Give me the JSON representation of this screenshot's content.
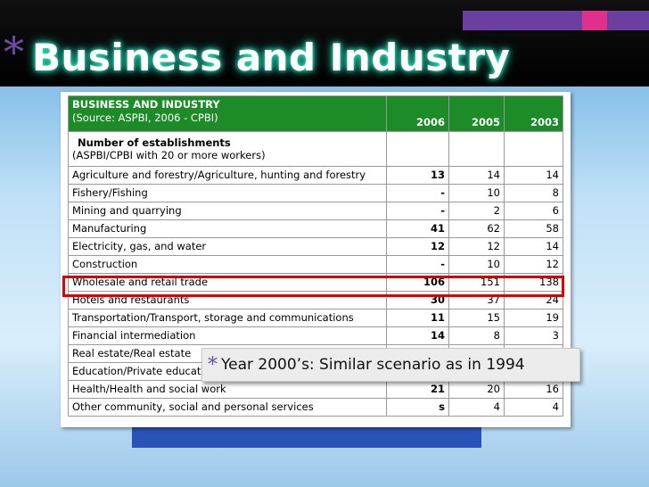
{
  "slide": {
    "title": "Business and Industry",
    "title_bullet": "*",
    "callout_bullet": "*",
    "callout_text": "Year 2000’s: Similar scenario as in 1994"
  },
  "table": {
    "header_line1": "BUSINESS AND INDUSTRY",
    "header_line2": "(Source: ASPBI, 2006 - CPBI)",
    "years": [
      "2006",
      "2005",
      "2003"
    ],
    "subheader_line1": "Number of establishments",
    "subheader_line2": "(ASPBI/CPBI with 20 or more workers)",
    "rows": [
      {
        "label": "Agriculture and forestry/Agriculture, hunting and forestry",
        "v2006": "13",
        "v2005": "14",
        "v2003": "14"
      },
      {
        "label": "Fishery/Fishing",
        "v2006": "-",
        "v2005": "10",
        "v2003": "8"
      },
      {
        "label": "Mining and quarrying",
        "v2006": "-",
        "v2005": "2",
        "v2003": "6"
      },
      {
        "label": "Manufacturing",
        "v2006": "41",
        "v2005": "62",
        "v2003": "58"
      },
      {
        "label": "Electricity, gas, and water",
        "v2006": "12",
        "v2005": "12",
        "v2003": "14"
      },
      {
        "label": "Construction",
        "v2006": "-",
        "v2005": "10",
        "v2003": "12"
      },
      {
        "label": "Wholesale and retail trade",
        "v2006": "106",
        "v2005": "151",
        "v2003": "138"
      },
      {
        "label": "Hotels and restaurants",
        "v2006": "30",
        "v2005": "37",
        "v2003": "24"
      },
      {
        "label": "Transportation/Transport, storage and communications",
        "v2006": "11",
        "v2005": "15",
        "v2003": "19"
      },
      {
        "label": "Financial intermediation",
        "v2006": "14",
        "v2005": "8",
        "v2003": "3"
      },
      {
        "label": "Real estate/Real estate",
        "v2006": "",
        "v2005": "",
        "v2003": ""
      },
      {
        "label": "Education/Private education",
        "v2006": "",
        "v2005": "",
        "v2003": ""
      },
      {
        "label": "Health/Health and social work",
        "v2006": "21",
        "v2005": "20",
        "v2003": "16"
      },
      {
        "label": "Other community, social and personal services",
        "v2006": "s",
        "v2005": "4",
        "v2003": "4"
      }
    ]
  },
  "colors": {
    "header_green": "#1d8b27",
    "highlight_red": "#e00000",
    "accent_purple": "#6a3fa0",
    "accent_pink": "#e0308c"
  }
}
